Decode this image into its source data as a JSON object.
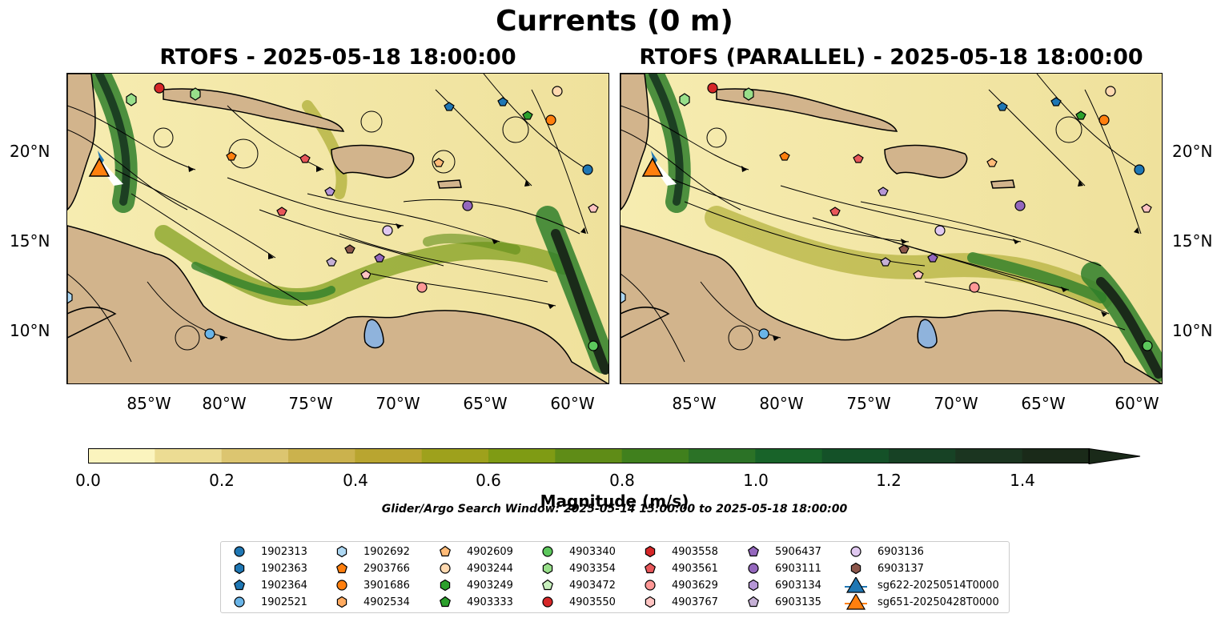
{
  "title": "Currents (0 m)",
  "panels": [
    {
      "title": "RTOFS - 2025-05-18 18:00:00"
    },
    {
      "title": "RTOFS (PARALLEL) - 2025-05-18 18:00:00"
    }
  ],
  "lat_labels": [
    "20°N",
    "15°N",
    "10°N"
  ],
  "lon_labels": [
    "85°W",
    "80°W",
    "75°W",
    "70°W",
    "65°W",
    "60°W"
  ],
  "colorbar": {
    "label": "Magnitude (m/s)",
    "ticks": [
      "0.0",
      "0.2",
      "0.4",
      "0.6",
      "0.8",
      "1.0",
      "1.2",
      "1.4"
    ],
    "colors": [
      "#fbf4be",
      "#ecdc93",
      "#dcc570",
      "#cbb24d",
      "#b9a530",
      "#9ea11c",
      "#7f9b14",
      "#5f8c17",
      "#40801d",
      "#2b7226",
      "#186329",
      "#145128",
      "#174225",
      "#1b3520",
      "#1a2a19"
    ]
  },
  "search_window": "Glider/Argo Search Window: 2025-05-14 15:00:00 to 2025-05-18 18:00:00",
  "legend": [
    {
      "label": "1902313",
      "color": "#1f77b4",
      "marker": "circle"
    },
    {
      "label": "1902363",
      "color": "#1f77b4",
      "marker": "hexagon"
    },
    {
      "label": "1902364",
      "color": "#1f77b4",
      "marker": "pentagon"
    },
    {
      "label": "1902521",
      "color": "#6ab5e8",
      "marker": "circle"
    },
    {
      "label": "1902692",
      "color": "#aed8f3",
      "marker": "hexagon"
    },
    {
      "label": "2903766",
      "color": "#ff7f0e",
      "marker": "pentagon"
    },
    {
      "label": "3901686",
      "color": "#ff7f0e",
      "marker": "circle"
    },
    {
      "label": "4902534",
      "color": "#ffaa60",
      "marker": "hexagon"
    },
    {
      "label": "4902609",
      "color": "#ffbb78",
      "marker": "pentagon"
    },
    {
      "label": "4903244",
      "color": "#ffd9b0",
      "marker": "circle"
    },
    {
      "label": "4903249",
      "color": "#2ca02c",
      "marker": "hexagon"
    },
    {
      "label": "4903333",
      "color": "#2ca02c",
      "marker": "pentagon"
    },
    {
      "label": "4903340",
      "color": "#5cc75c",
      "marker": "circle"
    },
    {
      "label": "4903354",
      "color": "#98df8a",
      "marker": "hexagon"
    },
    {
      "label": "4903472",
      "color": "#c8f0bd",
      "marker": "pentagon"
    },
    {
      "label": "4903550",
      "color": "#d62728",
      "marker": "circle"
    },
    {
      "label": "4903558",
      "color": "#d62728",
      "marker": "hexagon"
    },
    {
      "label": "4903561",
      "color": "#e8575a",
      "marker": "pentagon"
    },
    {
      "label": "4903629",
      "color": "#ff9896",
      "marker": "circle"
    },
    {
      "label": "4903767",
      "color": "#ffc4c2",
      "marker": "hexagon"
    },
    {
      "label": "5906437",
      "color": "#9467bd",
      "marker": "pentagon"
    },
    {
      "label": "6903111",
      "color": "#9467bd",
      "marker": "circle"
    },
    {
      "label": "6903134",
      "color": "#b596d6",
      "marker": "hexagon"
    },
    {
      "label": "6903135",
      "color": "#c5b0d5",
      "marker": "pentagon"
    },
    {
      "label": "6903136",
      "color": "#e0c8f0",
      "marker": "circle"
    },
    {
      "label": "6903137",
      "color": "#8c564b",
      "marker": "hexagon"
    },
    {
      "label": "sg622-20250514T0000",
      "color": "#1f77b4",
      "marker": "triangle"
    },
    {
      "label": "sg651-20250428T0000",
      "color": "#ff7f0e",
      "marker": "triangle"
    }
  ],
  "map_colors": {
    "land": "#d2b48c",
    "lake": "#8fb3dc",
    "river": "#9aaec8",
    "water_base": "#f3e8a8"
  }
}
